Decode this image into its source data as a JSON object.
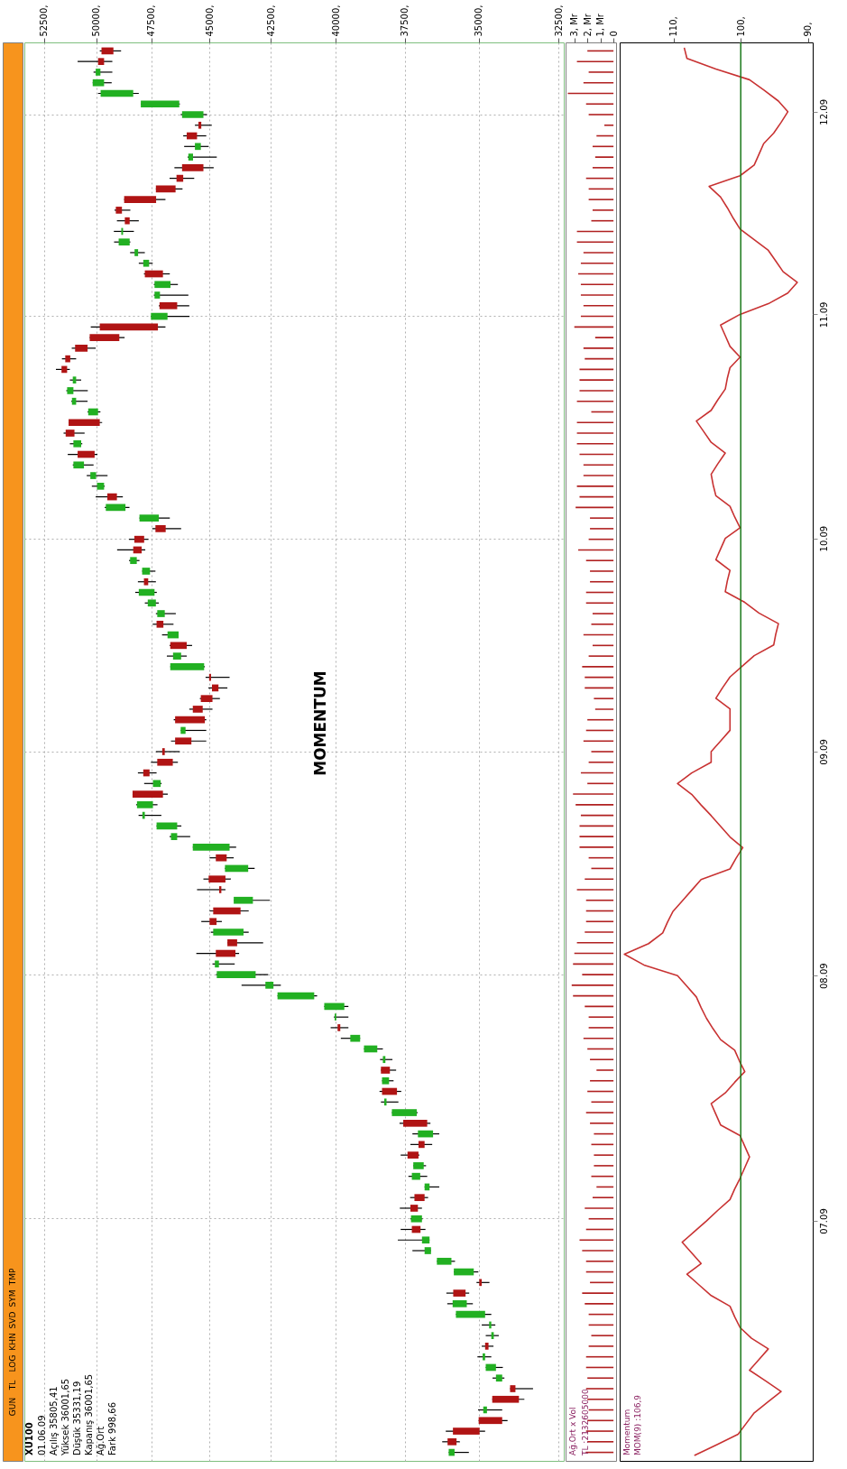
{
  "chart_data": [
    {
      "type": "other",
      "annotations": [
        "GUN",
        "TL",
        "LOG",
        "KHN",
        "SVD",
        "SYM",
        "TMP"
      ]
    },
    {
      "type": "candlestick",
      "orientation": "horizontal",
      "title": "MOMENTUM",
      "log": "x",
      "grid": true,
      "tick_labels": "x",
      "annotations": [
        "XU100",
        "01.06.09",
        "Açılış 35805,41",
        "Yüksek 36001,65",
        "Düşük 35331,19",
        "Kapanış 36001,65",
        "Ağ.Ort",
        "Fark 998,66"
      ],
      "xlim": [
        53470,
        32340
      ],
      "xticks": [
        {
          "value": 52500,
          "label": "52500,"
        },
        {
          "value": 50000,
          "label": "50000,"
        },
        {
          "value": 47500,
          "label": "47500,"
        },
        {
          "value": 45000,
          "label": "45000,"
        },
        {
          "value": 42500,
          "label": "42500,"
        },
        {
          "value": 40000,
          "label": "40000,"
        },
        {
          "value": 37500,
          "label": "37500,"
        },
        {
          "value": 35000,
          "label": "35000,"
        },
        {
          "value": 32500,
          "label": "32500,"
        }
      ],
      "categories": [
        null,
        null,
        null,
        null,
        null,
        null,
        "12.09",
        null,
        null,
        null,
        null,
        null,
        null,
        null,
        null,
        null,
        null,
        null,
        null,
        null,
        null,
        null,
        null,
        null,
        null,
        "11.09",
        null,
        null,
        null,
        null,
        null,
        null,
        null,
        null,
        null,
        null,
        null,
        null,
        null,
        null,
        null,
        null,
        null,
        null,
        null,
        null,
        "10.09",
        null,
        null,
        null,
        null,
        null,
        null,
        null,
        null,
        null,
        null,
        null,
        null,
        null,
        null,
        null,
        null,
        null,
        null,
        null,
        "09.09",
        null,
        null,
        null,
        null,
        null,
        null,
        null,
        null,
        null,
        null,
        null,
        null,
        null,
        null,
        null,
        null,
        null,
        null,
        null,
        null,
        "08.09",
        null,
        null,
        null,
        null,
        null,
        null,
        null,
        null,
        null,
        null,
        null,
        null,
        null,
        null,
        null,
        null,
        null,
        null,
        null,
        null,
        null,
        null,
        "07.09",
        null,
        null,
        null,
        null,
        null,
        null,
        null,
        null,
        null,
        null,
        null,
        null,
        null,
        null,
        null,
        null,
        null,
        null,
        null,
        null,
        null,
        null
      ],
      "ohlc": [
        [
          49760,
          49840,
          48860,
          49210
        ],
        [
          49920,
          50880,
          49260,
          49640
        ],
        [
          49810,
          50130,
          49260,
          50030
        ],
        [
          49640,
          50170,
          49290,
          50170
        ],
        [
          48310,
          49920,
          48060,
          49800
        ],
        [
          46280,
          47970,
          46250,
          47970
        ],
        [
          45250,
          46220,
          45100,
          46160
        ],
        [
          45460,
          45610,
          44900,
          45340
        ],
        [
          45960,
          46110,
          45130,
          45520
        ],
        [
          45360,
          46070,
          45030,
          45610
        ],
        [
          45690,
          45920,
          44690,
          45890
        ],
        [
          46160,
          46490,
          44820,
          45250
        ],
        [
          46400,
          46700,
          45640,
          46110
        ],
        [
          47300,
          47300,
          46140,
          46440
        ],
        [
          48720,
          48720,
          46880,
          47290
        ],
        [
          49100,
          49160,
          48440,
          48820
        ],
        [
          48690,
          49050,
          48060,
          48470
        ],
        [
          48770,
          49190,
          48280,
          48850
        ],
        [
          48470,
          49180,
          48440,
          48970
        ],
        [
          48090,
          48450,
          47790,
          48250
        ],
        [
          47600,
          48060,
          47440,
          47860
        ],
        [
          47790,
          47830,
          46690,
          46990
        ],
        [
          46660,
          47390,
          46340,
          47360
        ],
        [
          47120,
          47390,
          45890,
          47360
        ],
        [
          47140,
          47170,
          45850,
          46370
        ],
        [
          46790,
          47520,
          45840,
          47520
        ],
        [
          49840,
          50260,
          46880,
          47210
        ],
        [
          50310,
          50310,
          48700,
          48940
        ],
        [
          51000,
          51160,
          50030,
          50410
        ],
        [
          51470,
          51630,
          50950,
          51230
        ],
        [
          51650,
          51920,
          51250,
          51380
        ],
        [
          50950,
          51250,
          50710,
          51110
        ],
        [
          51080,
          51420,
          50400,
          51380
        ],
        [
          50950,
          51180,
          50410,
          51150
        ],
        [
          49920,
          50410,
          49810,
          50380
        ],
        [
          51310,
          51310,
          49730,
          49840
        ],
        [
          51450,
          51550,
          50550,
          51030
        ],
        [
          50710,
          51250,
          50660,
          51080
        ],
        [
          50880,
          51350,
          49950,
          50080
        ],
        [
          50580,
          51110,
          50130,
          51080
        ],
        [
          50010,
          50450,
          49480,
          50280
        ],
        [
          49640,
          50210,
          49610,
          49970
        ],
        [
          49490,
          50030,
          48780,
          49050
        ],
        [
          48660,
          49610,
          48480,
          49560
        ],
        [
          47170,
          48030,
          46690,
          48030
        ],
        [
          47320,
          47460,
          46200,
          46870
        ],
        [
          48260,
          48500,
          47630,
          47820
        ],
        [
          48310,
          49040,
          47770,
          47930
        ],
        [
          48150,
          48500,
          48030,
          48450
        ],
        [
          47560,
          47910,
          47320,
          47910
        ],
        [
          47830,
          48100,
          47300,
          47640
        ],
        [
          47360,
          48220,
          47260,
          48060
        ],
        [
          47300,
          47790,
          47170,
          47660
        ],
        [
          46910,
          47300,
          46430,
          47240
        ],
        [
          47270,
          47440,
          46530,
          46970
        ],
        [
          46310,
          47030,
          46310,
          46790
        ],
        [
          46670,
          46700,
          45730,
          45960
        ],
        [
          46200,
          46820,
          45960,
          46550
        ],
        [
          45220,
          46670,
          45190,
          46670
        ],
        [
          45010,
          45160,
          44160,
          44930
        ],
        [
          44890,
          45040,
          44250,
          44620
        ],
        [
          45360,
          45400,
          44560,
          44870
        ],
        [
          45700,
          45850,
          44870,
          45280
        ],
        [
          46460,
          46520,
          45130,
          45190
        ],
        [
          46010,
          46220,
          45130,
          46220
        ],
        [
          46460,
          46640,
          45130,
          45760
        ],
        [
          47020,
          47300,
          46260,
          46910
        ],
        [
          47240,
          47520,
          46340,
          46560
        ],
        [
          47860,
          48100,
          47270,
          47580
        ],
        [
          47090,
          47820,
          47050,
          47430
        ],
        [
          48340,
          48340,
          46780,
          46990
        ],
        [
          47430,
          48180,
          47230,
          48140
        ],
        [
          47790,
          48070,
          47060,
          47900
        ],
        [
          46370,
          47270,
          46190,
          47270
        ],
        [
          46370,
          46700,
          45810,
          46640
        ],
        [
          44160,
          45700,
          43890,
          45700
        ],
        [
          44730,
          44990,
          43990,
          44280
        ],
        [
          43400,
          44350,
          43140,
          44350
        ],
        [
          45030,
          45250,
          44110,
          44330
        ],
        [
          44590,
          45520,
          44330,
          44500
        ],
        [
          43210,
          43990,
          42530,
          43990
        ],
        [
          44840,
          44990,
          43380,
          43710
        ],
        [
          44990,
          45340,
          44480,
          44700
        ],
        [
          43590,
          44940,
          43380,
          44840
        ],
        [
          44250,
          44250,
          42800,
          43850
        ],
        [
          44730,
          45550,
          43770,
          43920
        ],
        [
          44600,
          44870,
          43950,
          44770
        ],
        [
          43100,
          44720,
          42600,
          44690
        ],
        [
          42390,
          43670,
          42100,
          42710
        ],
        [
          40810,
          42230,
          40700,
          42230
        ],
        [
          39680,
          40430,
          39530,
          40430
        ],
        [
          39980,
          40070,
          39530,
          40040
        ],
        [
          39930,
          40190,
          39530,
          39830
        ],
        [
          39100,
          39810,
          39100,
          39460
        ],
        [
          38480,
          38960,
          38280,
          38960
        ],
        [
          38190,
          38380,
          37940,
          38280
        ],
        [
          38350,
          38350,
          37810,
          38030
        ],
        [
          38060,
          38310,
          37900,
          38310
        ],
        [
          38310,
          38400,
          37630,
          37780
        ],
        [
          38150,
          38350,
          37730,
          38230
        ],
        [
          37090,
          37960,
          37060,
          37960
        ],
        [
          37560,
          37690,
          36620,
          36730
        ],
        [
          36530,
          37240,
          36320,
          37050
        ],
        [
          37030,
          37310,
          36560,
          36820
        ],
        [
          37410,
          37650,
          37000,
          37030
        ],
        [
          36850,
          37210,
          36770,
          37210
        ],
        [
          36970,
          37380,
          36730,
          37260
        ],
        [
          36650,
          36820,
          36320,
          36820
        ],
        [
          37170,
          37320,
          36700,
          36820
        ],
        [
          37310,
          37680,
          36910,
          37050
        ],
        [
          36910,
          37310,
          36890,
          37290
        ],
        [
          37260,
          37650,
          36790,
          36960
        ],
        [
          36650,
          37750,
          36650,
          36910
        ],
        [
          36600,
          37240,
          36600,
          36820
        ],
        [
          35910,
          36400,
          35790,
          36400
        ],
        [
          35170,
          35830,
          35020,
          35830
        ],
        [
          34990,
          35080,
          34660,
          34910
        ],
        [
          35850,
          36080,
          35320,
          35440
        ],
        [
          35400,
          36050,
          35200,
          35870
        ],
        [
          34800,
          35760,
          34600,
          35760
        ],
        [
          34600,
          34910,
          34470,
          34670
        ],
        [
          34520,
          34780,
          34360,
          34600
        ],
        [
          34800,
          34910,
          34530,
          34690
        ],
        [
          34800,
          35050,
          34600,
          34880
        ],
        [
          34450,
          34780,
          34230,
          34780
        ],
        [
          34250,
          34560,
          34180,
          34450
        ],
        [
          34000,
          34000,
          33280,
          33830
        ],
        [
          34570,
          34570,
          33550,
          33720
        ],
        [
          34740,
          35030,
          34250,
          34860
        ],
        [
          35010,
          35010,
          34080,
          34250
        ],
        [
          35860,
          36100,
          34800,
          34980
        ],
        [
          36040,
          36220,
          35630,
          35740
        ],
        [
          35805.41,
          36001.65,
          35331.19,
          36001.65
        ]
      ],
      "colors": [
        "#b01414",
        "#b01414",
        "#22b022",
        "#22b022",
        "#22b022",
        "#22b022",
        "#22b022",
        "#b01414",
        "#b01414",
        "#22b022",
        "#22b022",
        "#b01414",
        "#b01414",
        "#b01414",
        "#b01414",
        "#b01414",
        "#b01414",
        "#22b022",
        "#22b022",
        "#22b022",
        "#22b022",
        "#b01414",
        "#22b022",
        "#22b022",
        "#b01414",
        "#22b022",
        "#b01414",
        "#b01414",
        "#b01414",
        "#b01414",
        "#b01414",
        "#22b022",
        "#22b022",
        "#22b022",
        "#22b022",
        "#b01414",
        "#b01414",
        "#22b022",
        "#b01414",
        "#22b022",
        "#22b022",
        "#22b022",
        "#b01414",
        "#22b022",
        "#22b022",
        "#b01414",
        "#b01414",
        "#b01414",
        "#22b022",
        "#22b022",
        "#b01414",
        "#22b022",
        "#22b022",
        "#22b022",
        "#b01414",
        "#22b022",
        "#b01414",
        "#22b022",
        "#22b022",
        "#b01414",
        "#b01414",
        "#b01414",
        "#b01414",
        "#b01414",
        "#22b022",
        "#b01414",
        "#b01414",
        "#b01414",
        "#b01414",
        "#22b022",
        "#b01414",
        "#22b022",
        "#22b022",
        "#22b022",
        "#22b022",
        "#22b022",
        "#b01414",
        "#22b022",
        "#b01414",
        "#b01414",
        "#22b022",
        "#b01414",
        "#b01414",
        "#22b022",
        "#b01414",
        "#b01414",
        "#22b022",
        "#22b022",
        "#22b022",
        "#22b022",
        "#22b022",
        "#22b022",
        "#b01414",
        "#22b022",
        "#22b022",
        "#22b022",
        "#b01414",
        "#22b022",
        "#b01414",
        "#22b022",
        "#22b022",
        "#b01414",
        "#22b022",
        "#b01414",
        "#b01414",
        "#22b022",
        "#22b022",
        "#22b022",
        "#b01414",
        "#b01414",
        "#22b022",
        "#b01414",
        "#22b022",
        "#22b022",
        "#22b022",
        "#22b022",
        "#b01414",
        "#b01414",
        "#22b022",
        "#22b022",
        "#22b022",
        "#22b022",
        "#b01414",
        "#22b022",
        "#22b022",
        "#22b022",
        "#b01414",
        "#b01414",
        "#22b022",
        "#b01414",
        "#b01414",
        "#b01414",
        "#22b022"
      ]
    },
    {
      "type": "bar",
      "orientation": "horizontal",
      "tick_labels": "x",
      "annotations": [
        "Ağ.Ort x Vol",
        "TL :2132605000"
      ],
      "xlim": [
        3.67,
        -0.2
      ],
      "xticks": [
        {
          "value": 3,
          "label": "3, Mr"
        },
        {
          "value": 2,
          "label": "2, Mr"
        },
        {
          "value": 1,
          "label": "1, Mr"
        },
        0
      ],
      "categories": [
        null,
        null,
        null,
        null,
        null,
        null,
        "12.09",
        null,
        null,
        null,
        null,
        null,
        null,
        null,
        null,
        null,
        null,
        null,
        null,
        null,
        null,
        null,
        null,
        null,
        null,
        "11.09",
        null,
        null,
        null,
        null,
        null,
        null,
        null,
        null,
        null,
        null,
        null,
        null,
        null,
        null,
        null,
        null,
        null,
        null,
        null,
        null,
        "10.09",
        null,
        null,
        null,
        null,
        null,
        null,
        null,
        null,
        null,
        null,
        null,
        null,
        null,
        null,
        null,
        null,
        null,
        null,
        null,
        "09.09",
        null,
        null,
        null,
        null,
        null,
        null,
        null,
        null,
        null,
        null,
        null,
        null,
        null,
        null,
        null,
        null,
        null,
        null,
        null,
        null,
        "08.09",
        null,
        null,
        null,
        null,
        null,
        null,
        null,
        null,
        null,
        null,
        null,
        null,
        null,
        null,
        null,
        null,
        null,
        null,
        null,
        null,
        null,
        null,
        "07.09",
        null,
        null,
        null,
        null,
        null,
        null,
        null,
        null,
        null,
        null,
        null,
        null,
        null,
        null,
        null,
        null,
        null,
        null,
        null,
        null,
        null,
        null
      ],
      "series": [
        {
          "color": "#b02020",
          "values": [
            2.0,
            2.8,
            1.9,
            2.3,
            3.5,
            2.1,
            1.9,
            0.7,
            1.3,
            1.6,
            1.4,
            1.6,
            2.1,
            1.9,
            1.9,
            1.6,
            1.7,
            2.8,
            2.8,
            2.3,
            2.5,
            2.7,
            2.5,
            2.5,
            2.3,
            2.5,
            3.0,
            1.4,
            2.3,
            2.2,
            2.6,
            2.6,
            2.6,
            2.8,
            1.7,
            2.8,
            2.8,
            2.8,
            2.6,
            2.3,
            2.3,
            2.8,
            2.6,
            2.9,
            1.8,
            1.8,
            1.9,
            2.7,
            2.1,
            1.8,
            1.8,
            2.1,
            2.1,
            1.6,
            1.7,
            2.3,
            1.6,
            1.9,
            2.4,
            2.2,
            2.2,
            1.5,
            1.4,
            2.0,
            2.1,
            2.3,
            1.7,
            1.9,
            2.5,
            2.0,
            3.1,
            2.9,
            2.5,
            2.6,
            2.6,
            2.6,
            1.9,
            1.7,
            2.2,
            2.8,
            2.1,
            2.1,
            2.1,
            2.2,
            2.8,
            3.0,
            3.1,
            2.4,
            3.2,
            3.1,
            2.2,
            1.9,
            1.9,
            2.3,
            2.0,
            1.8,
            1.3,
            1.8,
            2.0,
            1.7,
            2.1,
            1.8,
            1.5,
            1.7,
            1.5,
            1.5,
            1.7,
            1.3,
            1.6,
            2.2,
            1.9,
            2.1,
            2.6,
            2.4,
            2.1,
            2.1,
            1.8,
            2.4,
            2.2,
            1.9,
            1.9,
            1.7,
            1.9,
            2.1,
            2.1,
            2.0,
            2.1,
            2.0,
            1.9,
            2.0,
            2.1,
            2.0,
            2.13
          ]
        }
      ]
    },
    {
      "type": "line",
      "orientation": "horizontal",
      "line_style": "solid",
      "annotations": [
        "Momentum",
        "MOM(9) :106,9"
      ],
      "xlim": [
        118,
        89.3
      ],
      "xticks": [
        {
          "value": 110,
          "label": "110,"
        },
        {
          "value": 100,
          "label": "100,"
        },
        {
          "value": 90,
          "label": "90,"
        }
      ],
      "ref_lines": [
        {
          "axis": "x",
          "value": 100,
          "color": "#1a7a1a"
        }
      ],
      "categories": [
        null,
        null,
        null,
        null,
        null,
        null,
        "12.09",
        null,
        null,
        null,
        null,
        null,
        null,
        null,
        null,
        null,
        null,
        null,
        null,
        null,
        null,
        null,
        null,
        null,
        null,
        "11.09",
        null,
        null,
        null,
        null,
        null,
        null,
        null,
        null,
        null,
        null,
        null,
        null,
        null,
        null,
        null,
        null,
        null,
        null,
        null,
        null,
        "10.09",
        null,
        null,
        null,
        null,
        null,
        null,
        null,
        null,
        null,
        null,
        null,
        null,
        null,
        null,
        null,
        null,
        null,
        null,
        null,
        "09.09",
        null,
        null,
        null,
        null,
        null,
        null,
        null,
        null,
        null,
        null,
        null,
        null,
        null,
        null,
        null,
        null,
        null,
        null,
        null,
        null,
        "08.09",
        null,
        null,
        null,
        null,
        null,
        null,
        null,
        null,
        null,
        null,
        null,
        null,
        null,
        null,
        null,
        null,
        null,
        null,
        null,
        null,
        null,
        null,
        "07.09",
        null,
        null,
        null,
        null,
        null,
        null,
        null,
        null,
        null,
        null,
        null,
        null,
        null,
        null,
        null,
        null,
        null,
        null,
        null,
        null,
        null,
        null
      ],
      "series": [
        {
          "color": "#c83232",
          "values": [
            108.4,
            108.0,
            103.7,
            98.7,
            96.5,
            94.4,
            93.0,
            94.0,
            95.1,
            96.6,
            97.3,
            98.0,
            100.1,
            104.7,
            103.0,
            102.0,
            101.1,
            100.1,
            98.0,
            95.9,
            94.8,
            93.7,
            91.6,
            93.0,
            95.9,
            100.1,
            103.0,
            102.3,
            101.6,
            100.1,
            101.6,
            102.0,
            102.3,
            103.4,
            104.4,
            106.6,
            105.5,
            104.4,
            102.3,
            103.4,
            104.4,
            104.1,
            103.7,
            101.6,
            100.9,
            100.1,
            102.3,
            103.0,
            103.7,
            101.6,
            102.0,
            102.3,
            99.4,
            97.3,
            94.4,
            94.8,
            95.1,
            98.0,
            99.8,
            101.6,
            102.7,
            103.7,
            101.6,
            101.6,
            101.6,
            103.0,
            104.4,
            104.4,
            107.3,
            109.4,
            107.3,
            105.9,
            104.4,
            103.0,
            101.6,
            99.7,
            100.7,
            101.6,
            105.9,
            107.3,
            108.7,
            110.1,
            110.9,
            111.6,
            113.7,
            117.3,
            114.4,
            109.4,
            108.0,
            106.6,
            105.9,
            105.1,
            104.1,
            103.0,
            100.9,
            100.2,
            99.4,
            100.9,
            102.3,
            104.4,
            103.7,
            103.0,
            100.1,
            99.4,
            98.7,
            99.4,
            100.1,
            100.9,
            101.6,
            103.4,
            105.1,
            106.9,
            108.7,
            107.3,
            105.9,
            108.0,
            106.2,
            104.4,
            101.6,
            100.9,
            100.1,
            98.4,
            95.9,
            97.3,
            98.7,
            96.3,
            94.0,
            96.0,
            98.0,
            99.2,
            100.4,
            103.6,
            106.9
          ]
        }
      ]
    }
  ]
}
